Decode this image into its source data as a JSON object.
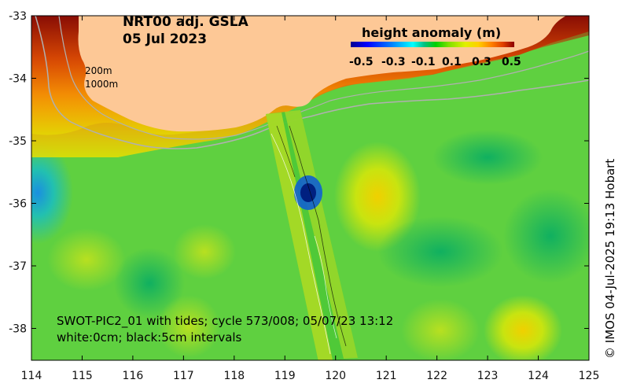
{
  "title": {
    "product": "NRT00 adj. GSLA",
    "date": "05 Jul 2023"
  },
  "colorbar": {
    "title": "height anomaly (m)",
    "ticks": [
      "-0.5",
      "-0.3",
      "-0.1",
      "0.1",
      "0.3",
      "0.5"
    ],
    "colors": [
      "#00008f",
      "#0000ff",
      "#0080ff",
      "#00ffff",
      "#00c080",
      "#00d000",
      "#80e000",
      "#e0f000",
      "#ffd000",
      "#ff8000",
      "#e04000",
      "#8b0000"
    ]
  },
  "isobaths": {
    "shallow": "200m",
    "deep": "1000m"
  },
  "x_ticks": [
    "114",
    "115",
    "116",
    "117",
    "118",
    "119",
    "120",
    "121",
    "122",
    "123",
    "124",
    "125"
  ],
  "y_ticks": [
    "-33",
    "-34",
    "-35",
    "-36",
    "-37",
    "-38"
  ],
  "swot_note": {
    "line1": "SWOT-PIC2_01 with tides; cycle 573/008; 05/07/23 13:12",
    "line2": "white:0cm; black:5cm intervals"
  },
  "credit": "© IMOS 04-Jul-2025 19:13 Hobart",
  "colors": {
    "land": "#fdc896",
    "ocean_base": "#5fd040",
    "isobath": "#b0b0b0"
  }
}
